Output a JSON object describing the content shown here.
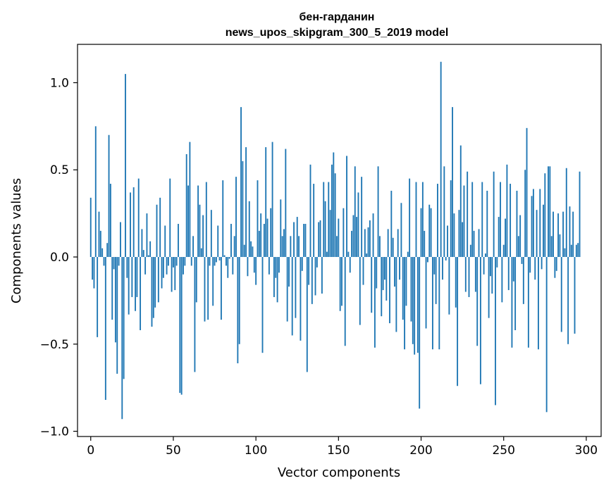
{
  "chart_data": {
    "type": "bar",
    "title": "бен-гарданин",
    "subtitle": "news_upos_skipgram_300_5_2019 model",
    "xlabel": "Vector components",
    "ylabel": "Components values",
    "xlim": [
      -8,
      309
    ],
    "ylim": [
      -1.03,
      1.22
    ],
    "xticks": [
      0,
      50,
      100,
      150,
      200,
      250,
      300
    ],
    "xtick_labels": [
      "0",
      "50",
      "100",
      "150",
      "200",
      "250",
      "300"
    ],
    "yticks": [
      -1.0,
      -0.5,
      0.0,
      0.5,
      1.0
    ],
    "ytick_labels": [
      "−1.0",
      "−0.5",
      "0.0",
      "0.5",
      "1.0"
    ],
    "grid": false,
    "legend": "none",
    "bar_color": "#1f77b4",
    "values": [
      0.34,
      -0.13,
      -0.18,
      0.75,
      -0.46,
      0.26,
      0.15,
      0.05,
      -0.05,
      -0.82,
      0.08,
      0.7,
      0.42,
      -0.36,
      -0.07,
      -0.49,
      -0.67,
      -0.05,
      0.2,
      -0.93,
      -0.7,
      1.05,
      -0.12,
      -0.33,
      0.37,
      -0.23,
      0.4,
      -0.31,
      -0.23,
      0.45,
      -0.42,
      0.16,
      0.04,
      -0.1,
      0.25,
      0.01,
      0.09,
      -0.4,
      -0.35,
      -0.29,
      0.3,
      -0.26,
      0.34,
      -0.18,
      -0.12,
      0.18,
      -0.1,
      -0.05,
      0.45,
      -0.2,
      -0.06,
      -0.19,
      -0.05,
      0.19,
      -0.78,
      -0.79,
      -0.1,
      -0.05,
      0.59,
      0.41,
      0.66,
      -0.05,
      0.12,
      -0.66,
      -0.26,
      0.41,
      0.3,
      0.05,
      0.24,
      -0.37,
      0.43,
      -0.36,
      -0.05,
      0.27,
      -0.28,
      -0.05,
      -0.03,
      0.18,
      -0.02,
      -0.36,
      0.44,
      0.01,
      -0.05,
      -0.12,
      -0.01,
      0.19,
      -0.1,
      0.12,
      0.46,
      -0.61,
      -0.5,
      0.86,
      0.55,
      0.07,
      0.63,
      -0.11,
      0.32,
      0.09,
      0.06,
      -0.09,
      -0.16,
      0.44,
      0.15,
      0.25,
      -0.55,
      0.19,
      0.63,
      0.22,
      -0.1,
      0.28,
      0.66,
      -0.23,
      -0.12,
      -0.26,
      -0.09,
      0.33,
      0.12,
      0.16,
      0.62,
      -0.37,
      -0.17,
      0.12,
      -0.45,
      0.2,
      -0.35,
      0.23,
      0.12,
      -0.48,
      -0.08,
      0.19,
      0.19,
      -0.66,
      -0.16,
      0.53,
      -0.27,
      0.42,
      -0.22,
      -0.06,
      0.2,
      0.21,
      -0.21,
      0.43,
      0.32,
      0.03,
      0.43,
      0.27,
      0.53,
      0.6,
      0.48,
      0.12,
      0.22,
      -0.31,
      -0.28,
      0.28,
      -0.51,
      0.58,
      0.03,
      -0.09,
      0.15,
      0.24,
      0.52,
      0.23,
      0.37,
      -0.39,
      0.46,
      -0.16,
      0.16,
      0.02,
      0.17,
      0.21,
      -0.32,
      0.25,
      -0.52,
      -0.18,
      0.52,
      0.12,
      -0.34,
      -0.19,
      -0.13,
      -0.25,
      0.16,
      -0.38,
      0.38,
      0.11,
      -0.17,
      -0.43,
      0.16,
      -0.13,
      0.31,
      -0.36,
      -0.53,
      -0.28,
      0.03,
      0.45,
      -0.37,
      -0.5,
      -0.56,
      0.43,
      -0.55,
      -0.87,
      0.28,
      0.43,
      0.15,
      -0.41,
      -0.03,
      0.3,
      0.28,
      -0.53,
      -0.1,
      -0.27,
      0.42,
      -0.53,
      1.12,
      -0.13,
      0.52,
      -0.02,
      0.18,
      -0.33,
      0.44,
      0.86,
      0.25,
      -0.29,
      -0.74,
      0.27,
      0.64,
      0.2,
      0.41,
      -0.2,
      0.49,
      -0.23,
      0.07,
      0.43,
      0.15,
      -0.2,
      -0.51,
      0.16,
      -0.73,
      0.43,
      -0.1,
      0.02,
      0.38,
      -0.35,
      -0.11,
      -0.21,
      0.49,
      -0.85,
      -0.06,
      0.23,
      0.43,
      -0.26,
      0.07,
      0.22,
      0.53,
      -0.19,
      0.42,
      -0.52,
      -0.14,
      -0.42,
      0.38,
      0.12,
      0.24,
      -0.04,
      -0.27,
      0.5,
      0.74,
      -0.52,
      -0.09,
      0.35,
      0.39,
      -0.13,
      0.27,
      -0.53,
      0.39,
      -0.07,
      0.3,
      0.48,
      -0.89,
      0.52,
      0.52,
      0.12,
      0.26,
      -0.12,
      -0.08,
      0.25,
      0.13,
      -0.43,
      0.26,
      0.05,
      0.51,
      -0.5,
      0.29,
      0.07,
      0.26,
      -0.44,
      0.07,
      0.08,
      0.49
    ]
  }
}
